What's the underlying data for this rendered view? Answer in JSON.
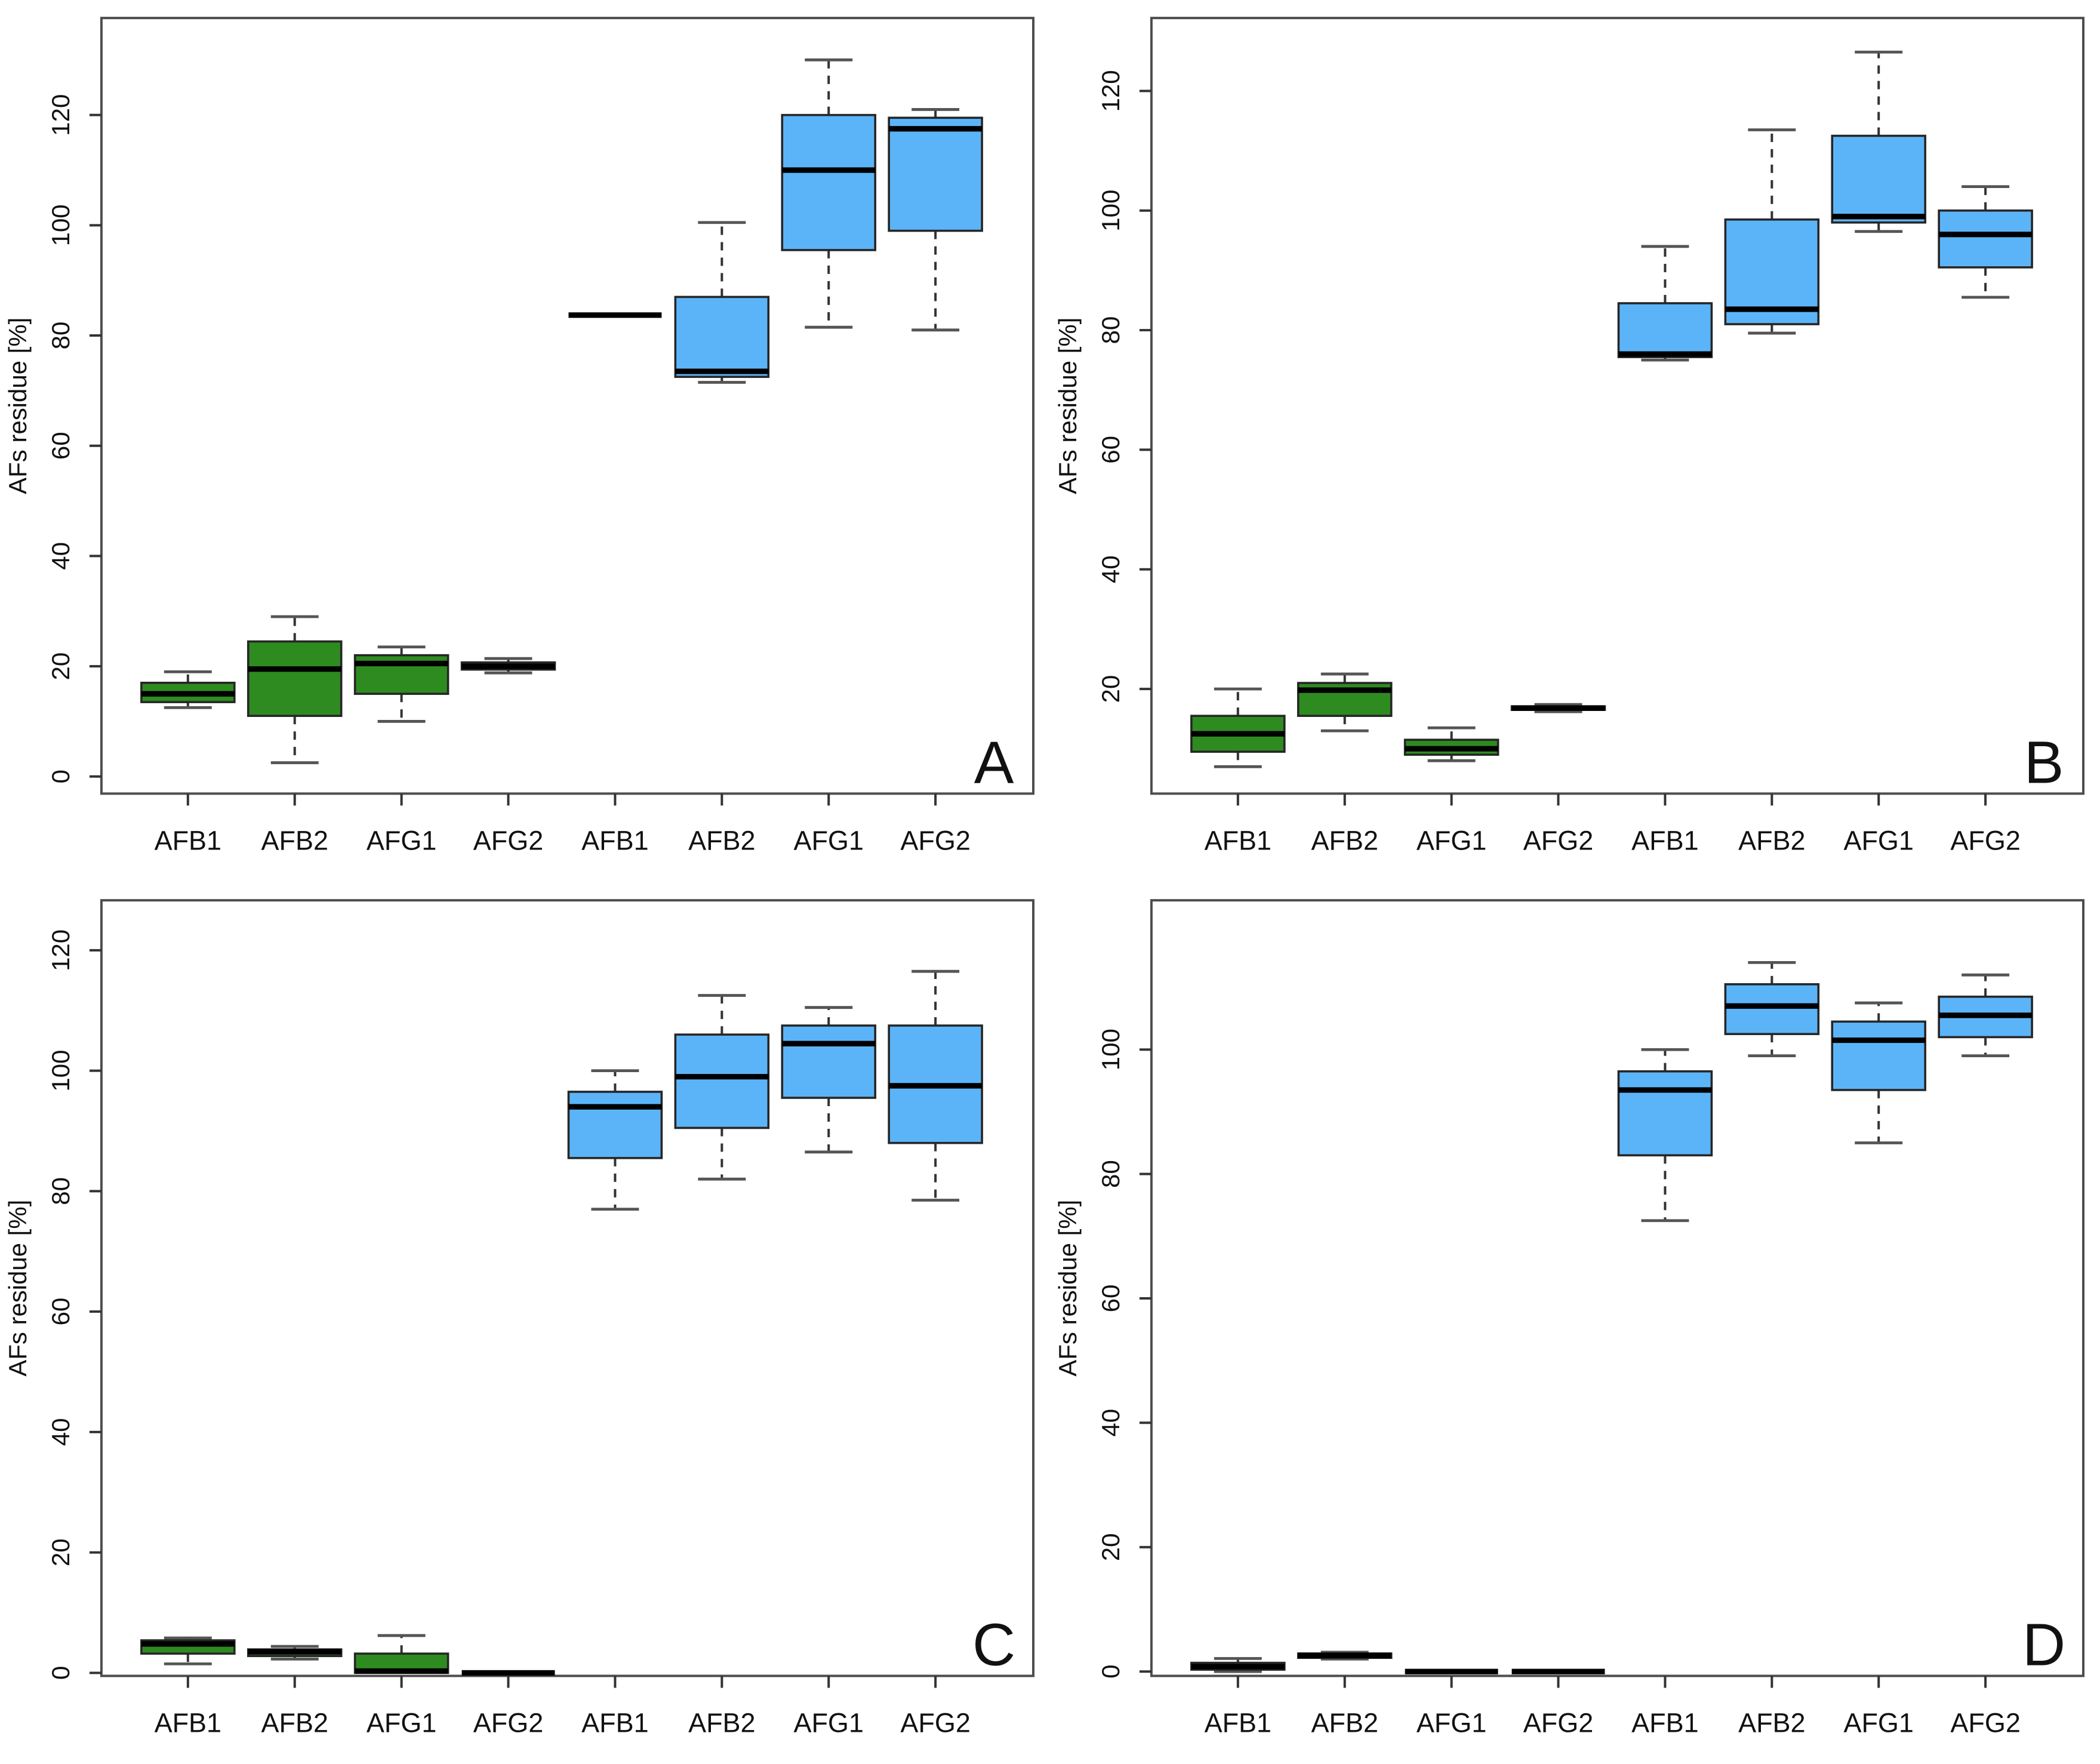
{
  "figure": {
    "type": "boxplot-grid",
    "background": "#ffffff",
    "shared_ylabel": "AFs residue [%]",
    "panel_letters": [
      "A",
      "B",
      "C",
      "D"
    ]
  },
  "colors": {
    "green_fill": "#2e8b20",
    "blue_fill": "#5cb4f8",
    "box_border": "#262626",
    "median": "#000000",
    "whisker": "#333333",
    "cap": "#555555",
    "frame": "#4d4d4d",
    "tick": "#333333",
    "text": "#111111"
  },
  "chart_data": [
    {
      "type": "boxplot",
      "panel_label": "A",
      "ylabel": "AFs residue [%]",
      "ylim": [
        -3.1,
        137.6
      ],
      "yticks": [
        0,
        20,
        40,
        60,
        80,
        100,
        120
      ],
      "grid": false,
      "categories": [
        "AFB1",
        "AFB2",
        "AFG1",
        "AFG2",
        "AFB1",
        "AFB2",
        "AFG1",
        "AFG2"
      ],
      "boxes": [
        {
          "cat": "AFB1",
          "group": "green",
          "low": 12.5,
          "q1": 13.5,
          "median": 15,
          "q3": 17,
          "high": 19
        },
        {
          "cat": "AFB2",
          "group": "green",
          "low": 2.5,
          "q1": 11,
          "median": 19.5,
          "q3": 24.5,
          "high": 29
        },
        {
          "cat": "AFG1",
          "group": "green",
          "low": 10,
          "q1": 15,
          "median": 20.5,
          "q3": 22,
          "high": 23.5
        },
        {
          "cat": "AFG2",
          "group": "green",
          "low": 18.8,
          "q1": 19.4,
          "median": 20,
          "q3": 20.7,
          "high": 21.4
        },
        {
          "cat": "AFB1",
          "group": "blue",
          "low": 83.7,
          "q1": 83.7,
          "median": 83.7,
          "q3": 83.7,
          "high": 83.7
        },
        {
          "cat": "AFB2",
          "group": "blue",
          "low": 71.5,
          "q1": 72.5,
          "median": 73.5,
          "q3": 87,
          "high": 100.5
        },
        {
          "cat": "AFG1",
          "group": "blue",
          "low": 81.5,
          "q1": 95.5,
          "median": 110,
          "q3": 120,
          "high": 130
        },
        {
          "cat": "AFG2",
          "group": "blue",
          "low": 81,
          "q1": 99,
          "median": 117.5,
          "q3": 119.5,
          "high": 121
        }
      ]
    },
    {
      "type": "boxplot",
      "panel_label": "B",
      "ylabel": "AFs residue [%]",
      "ylim": [
        2.5,
        132.2
      ],
      "yticks": [
        20,
        40,
        60,
        80,
        100,
        120
      ],
      "grid": false,
      "categories": [
        "AFB1",
        "AFB2",
        "AFG1",
        "AFG2",
        "AFB1",
        "AFB2",
        "AFG1",
        "AFG2"
      ],
      "boxes": [
        {
          "cat": "AFB1",
          "group": "green",
          "low": 7,
          "q1": 9.5,
          "median": 12.5,
          "q3": 15.5,
          "high": 20
        },
        {
          "cat": "AFB2",
          "group": "green",
          "low": 13,
          "q1": 15.5,
          "median": 19.8,
          "q3": 21,
          "high": 22.5
        },
        {
          "cat": "AFG1",
          "group": "green",
          "low": 8,
          "q1": 9,
          "median": 10,
          "q3": 11.5,
          "high": 13.5
        },
        {
          "cat": "AFG2",
          "group": "green",
          "low": 16.2,
          "q1": 16.5,
          "median": 16.8,
          "q3": 17.1,
          "high": 17.4
        },
        {
          "cat": "AFB1",
          "group": "blue",
          "low": 75,
          "q1": 75.5,
          "median": 76,
          "q3": 84.5,
          "high": 94
        },
        {
          "cat": "AFB2",
          "group": "blue",
          "low": 79.5,
          "q1": 81,
          "median": 83.5,
          "q3": 98.5,
          "high": 113.5
        },
        {
          "cat": "AFG1",
          "group": "blue",
          "low": 96.5,
          "q1": 98,
          "median": 99,
          "q3": 112.5,
          "high": 126.5
        },
        {
          "cat": "AFG2",
          "group": "blue",
          "low": 85.5,
          "q1": 90.5,
          "median": 96,
          "q3": 100,
          "high": 104
        }
      ]
    },
    {
      "type": "boxplot",
      "panel_label": "C",
      "ylabel": "AFs residue [%]",
      "ylim": [
        -0.5,
        128.3
      ],
      "yticks": [
        0,
        20,
        40,
        60,
        80,
        100,
        120
      ],
      "grid": false,
      "categories": [
        "AFB1",
        "AFB2",
        "AFG1",
        "AFG2",
        "AFB1",
        "AFB2",
        "AFG1",
        "AFG2"
      ],
      "boxes": [
        {
          "cat": "AFB1",
          "group": "green",
          "low": 1.5,
          "q1": 3.2,
          "median": 4.8,
          "q3": 5.4,
          "high": 5.8
        },
        {
          "cat": "AFB2",
          "group": "green",
          "low": 2.3,
          "q1": 2.8,
          "median": 3.5,
          "q3": 3.9,
          "high": 4.4
        },
        {
          "cat": "AFG1",
          "group": "green",
          "low": 0,
          "q1": 0,
          "median": 0.3,
          "q3": 3.2,
          "high": 6.2
        },
        {
          "cat": "AFG2",
          "group": "green",
          "low": 0,
          "q1": 0,
          "median": 0,
          "q3": 0,
          "high": 0
        },
        {
          "cat": "AFB1",
          "group": "blue",
          "low": 77,
          "q1": 85.5,
          "median": 94,
          "q3": 96.5,
          "high": 100
        },
        {
          "cat": "AFB2",
          "group": "blue",
          "low": 82,
          "q1": 90.5,
          "median": 99,
          "q3": 106,
          "high": 112.5
        },
        {
          "cat": "AFG1",
          "group": "blue",
          "low": 86.5,
          "q1": 95.5,
          "median": 104.5,
          "q3": 107.5,
          "high": 110.5
        },
        {
          "cat": "AFG2",
          "group": "blue",
          "low": 78.5,
          "q1": 88,
          "median": 97.5,
          "q3": 107.5,
          "high": 116.5
        }
      ]
    },
    {
      "type": "boxplot",
      "panel_label": "D",
      "ylabel": "AFs residue [%]",
      "ylim": [
        -0.7,
        124
      ],
      "yticks": [
        0,
        20,
        40,
        60,
        80,
        100
      ],
      "grid": false,
      "categories": [
        "AFB1",
        "AFB2",
        "AFG1",
        "AFG2",
        "AFB1",
        "AFB2",
        "AFG1",
        "AFG2"
      ],
      "boxes": [
        {
          "cat": "AFB1",
          "group": "green",
          "low": 0,
          "q1": 0.3,
          "median": 0.8,
          "q3": 1.4,
          "high": 2.1
        },
        {
          "cat": "AFB2",
          "group": "green",
          "low": 2.0,
          "q1": 2.2,
          "median": 2.6,
          "q3": 2.9,
          "high": 3.1
        },
        {
          "cat": "AFG1",
          "group": "green",
          "low": 0,
          "q1": 0,
          "median": 0,
          "q3": 0,
          "high": 0
        },
        {
          "cat": "AFG2",
          "group": "green",
          "low": 0,
          "q1": 0,
          "median": 0,
          "q3": 0,
          "high": 0
        },
        {
          "cat": "AFB1",
          "group": "blue",
          "low": 72.5,
          "q1": 83,
          "median": 93.5,
          "q3": 96.5,
          "high": 100
        },
        {
          "cat": "AFB2",
          "group": "blue",
          "low": 99,
          "q1": 102.5,
          "median": 107,
          "q3": 110.5,
          "high": 114
        },
        {
          "cat": "AFG1",
          "group": "blue",
          "low": 85,
          "q1": 93.5,
          "median": 101.5,
          "q3": 104.5,
          "high": 107.5
        },
        {
          "cat": "AFG2",
          "group": "blue",
          "low": 99,
          "q1": 102,
          "median": 105.5,
          "q3": 108.5,
          "high": 112
        }
      ]
    }
  ]
}
